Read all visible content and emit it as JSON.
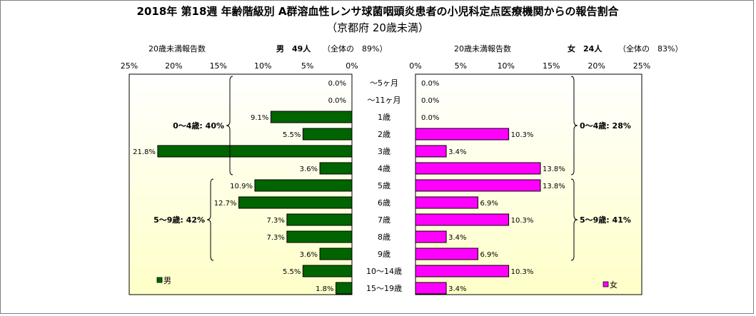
{
  "chart_data": {
    "type": "bar",
    "title": "2018年 第18週 年齢階級別 A群溶血性レンサ球菌咽頭炎患者の小児科定点医療機関からの報告割合",
    "subtitle": "（京都府 20歳未満）",
    "categories": [
      "～5ヶ月",
      "～11ヶ月",
      "1歳",
      "2歳",
      "3歳",
      "4歳",
      "5歳",
      "6歳",
      "7歳",
      "8歳",
      "9歳",
      "10～14歳",
      "15～19歳"
    ],
    "xlim": [
      0,
      25
    ],
    "x_ticks": [
      "0%",
      "5%",
      "10%",
      "15%",
      "20%",
      "25%"
    ],
    "colors": {
      "male": "#006400",
      "female": "#ff00ff",
      "plot_bg_top": "#ffffff",
      "plot_bg_bottom": "#ffffc8"
    },
    "series": [
      {
        "name": "男",
        "side": "left",
        "header_label": "20歳未満報告数",
        "header_count": "男　49人",
        "header_share": "（全体の　89%）",
        "values": [
          0.0,
          0.0,
          9.1,
          5.5,
          21.8,
          3.6,
          10.9,
          12.7,
          7.3,
          7.3,
          3.6,
          5.5,
          1.8
        ],
        "labels": [
          "0.0%",
          "0.0%",
          "9.1%",
          "5.5%",
          "21.8%",
          "3.6%",
          "10.9%",
          "12.7%",
          "7.3%",
          "7.3%",
          "3.6%",
          "5.5%",
          "1.8%"
        ],
        "brackets": [
          {
            "label": "0～4歳: 40%",
            "from": 0,
            "to": 5
          },
          {
            "label": "5～9歳: 42%",
            "from": 6,
            "to": 10
          }
        ]
      },
      {
        "name": "女",
        "side": "right",
        "header_label": "20歳未満報告数",
        "header_count": "女　24人",
        "header_share": "（全体の　83%）",
        "values": [
          0.0,
          0.0,
          0.0,
          10.3,
          3.4,
          13.8,
          13.8,
          6.9,
          10.3,
          3.4,
          6.9,
          10.3,
          3.4
        ],
        "labels": [
          "0.0%",
          "0.0%",
          "0.0%",
          "10.3%",
          "3.4%",
          "13.8%",
          "13.8%",
          "6.9%",
          "10.3%",
          "3.4%",
          "6.9%",
          "10.3%",
          "3.4%"
        ],
        "brackets": [
          {
            "label": "0～4歳: 28%",
            "from": 0,
            "to": 5
          },
          {
            "label": "5～9歳: 41%",
            "from": 6,
            "to": 10
          }
        ]
      }
    ]
  }
}
